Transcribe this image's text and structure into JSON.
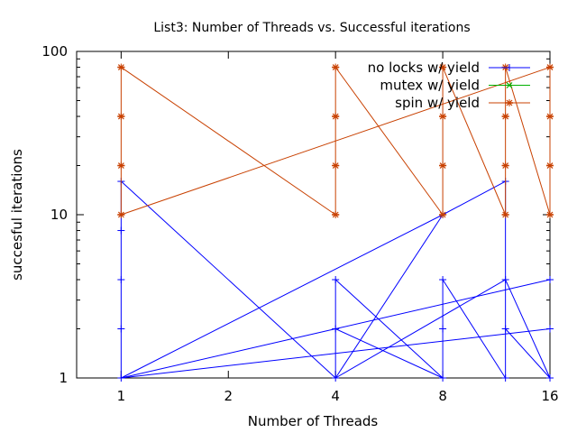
{
  "chart_data": {
    "type": "line",
    "title": "List3: Number of Threads vs. Successful iterations",
    "xlabel": "Number of Threads",
    "ylabel": "succesful iterations",
    "x_scale": "log2",
    "y_scale": "log10",
    "xlim": [
      0.75,
      16
    ],
    "ylim": [
      1,
      100
    ],
    "x_ticks": [
      1,
      2,
      4,
      8,
      16
    ],
    "x_tick_labels": [
      "1",
      "2",
      "4",
      "8",
      "16"
    ],
    "y_ticks": [
      1,
      10,
      100
    ],
    "y_tick_labels": [
      "1",
      "10",
      "100"
    ],
    "grid": false,
    "legend_position": "top-right",
    "series": [
      {
        "name": "no locks w/ yield",
        "color": "#0000ff",
        "marker": "plus",
        "points": [
          [
            1,
            1
          ],
          [
            1,
            2
          ],
          [
            1,
            4
          ],
          [
            1,
            8
          ],
          [
            1,
            16
          ],
          [
            4,
            1
          ],
          [
            4,
            2
          ],
          [
            4,
            4
          ],
          [
            8,
            1
          ],
          [
            8,
            2
          ],
          [
            8,
            4
          ],
          [
            8,
            10
          ],
          [
            12,
            1
          ],
          [
            12,
            2
          ],
          [
            12,
            4
          ],
          [
            12,
            16
          ],
          [
            16,
            1
          ],
          [
            16,
            2
          ],
          [
            16,
            4
          ]
        ],
        "segments": [
          [
            [
              1,
              1
            ],
            [
              1,
              16
            ]
          ],
          [
            [
              1,
              16
            ],
            [
              4,
              1
            ]
          ],
          [
            [
              4,
              1
            ],
            [
              8,
              10
            ]
          ],
          [
            [
              8,
              10
            ],
            [
              12,
              16
            ]
          ],
          [
            [
              4,
              1
            ],
            [
              4,
              4
            ]
          ],
          [
            [
              4,
              4
            ],
            [
              8,
              1
            ]
          ],
          [
            [
              8,
              1
            ],
            [
              4,
              2
            ]
          ],
          [
            [
              4,
              2
            ],
            [
              1,
              1
            ]
          ],
          [
            [
              1,
              1
            ],
            [
              8,
              10
            ]
          ],
          [
            [
              1,
              1
            ],
            [
              16,
              2
            ]
          ],
          [
            [
              4,
              2
            ],
            [
              16,
              4
            ]
          ],
          [
            [
              8,
              1
            ],
            [
              8,
              4
            ]
          ],
          [
            [
              8,
              4
            ],
            [
              12,
              1
            ]
          ],
          [
            [
              4,
              1
            ],
            [
              12,
              4
            ]
          ],
          [
            [
              12,
              1
            ],
            [
              12,
              16
            ]
          ],
          [
            [
              12,
              4
            ],
            [
              16,
              1
            ]
          ],
          [
            [
              12,
              2
            ],
            [
              16,
              1
            ]
          ]
        ]
      },
      {
        "name": "mutex w/ yield",
        "color": "#00b000",
        "marker": "x",
        "points": [],
        "segments": []
      },
      {
        "name": "spin w/ yield",
        "color": "#c84000",
        "marker": "star",
        "points": [
          [
            1,
            10
          ],
          [
            1,
            20
          ],
          [
            1,
            40
          ],
          [
            1,
            80
          ],
          [
            4,
            10
          ],
          [
            4,
            20
          ],
          [
            4,
            40
          ],
          [
            4,
            80
          ],
          [
            8,
            10
          ],
          [
            8,
            20
          ],
          [
            8,
            40
          ],
          [
            8,
            80
          ],
          [
            12,
            10
          ],
          [
            12,
            20
          ],
          [
            12,
            40
          ],
          [
            12,
            80
          ],
          [
            16,
            10
          ],
          [
            16,
            20
          ],
          [
            16,
            40
          ],
          [
            16,
            80
          ]
        ],
        "segments": [
          [
            [
              1,
              10
            ],
            [
              1,
              80
            ]
          ],
          [
            [
              1,
              80
            ],
            [
              4,
              10
            ]
          ],
          [
            [
              4,
              10
            ],
            [
              4,
              80
            ]
          ],
          [
            [
              4,
              80
            ],
            [
              8,
              10
            ]
          ],
          [
            [
              8,
              10
            ],
            [
              8,
              80
            ]
          ],
          [
            [
              8,
              80
            ],
            [
              12,
              10
            ]
          ],
          [
            [
              12,
              10
            ],
            [
              12,
              80
            ]
          ],
          [
            [
              12,
              80
            ],
            [
              16,
              10
            ]
          ],
          [
            [
              16,
              10
            ],
            [
              16,
              80
            ]
          ],
          [
            [
              1,
              10
            ],
            [
              16,
              80
            ]
          ]
        ]
      }
    ]
  }
}
